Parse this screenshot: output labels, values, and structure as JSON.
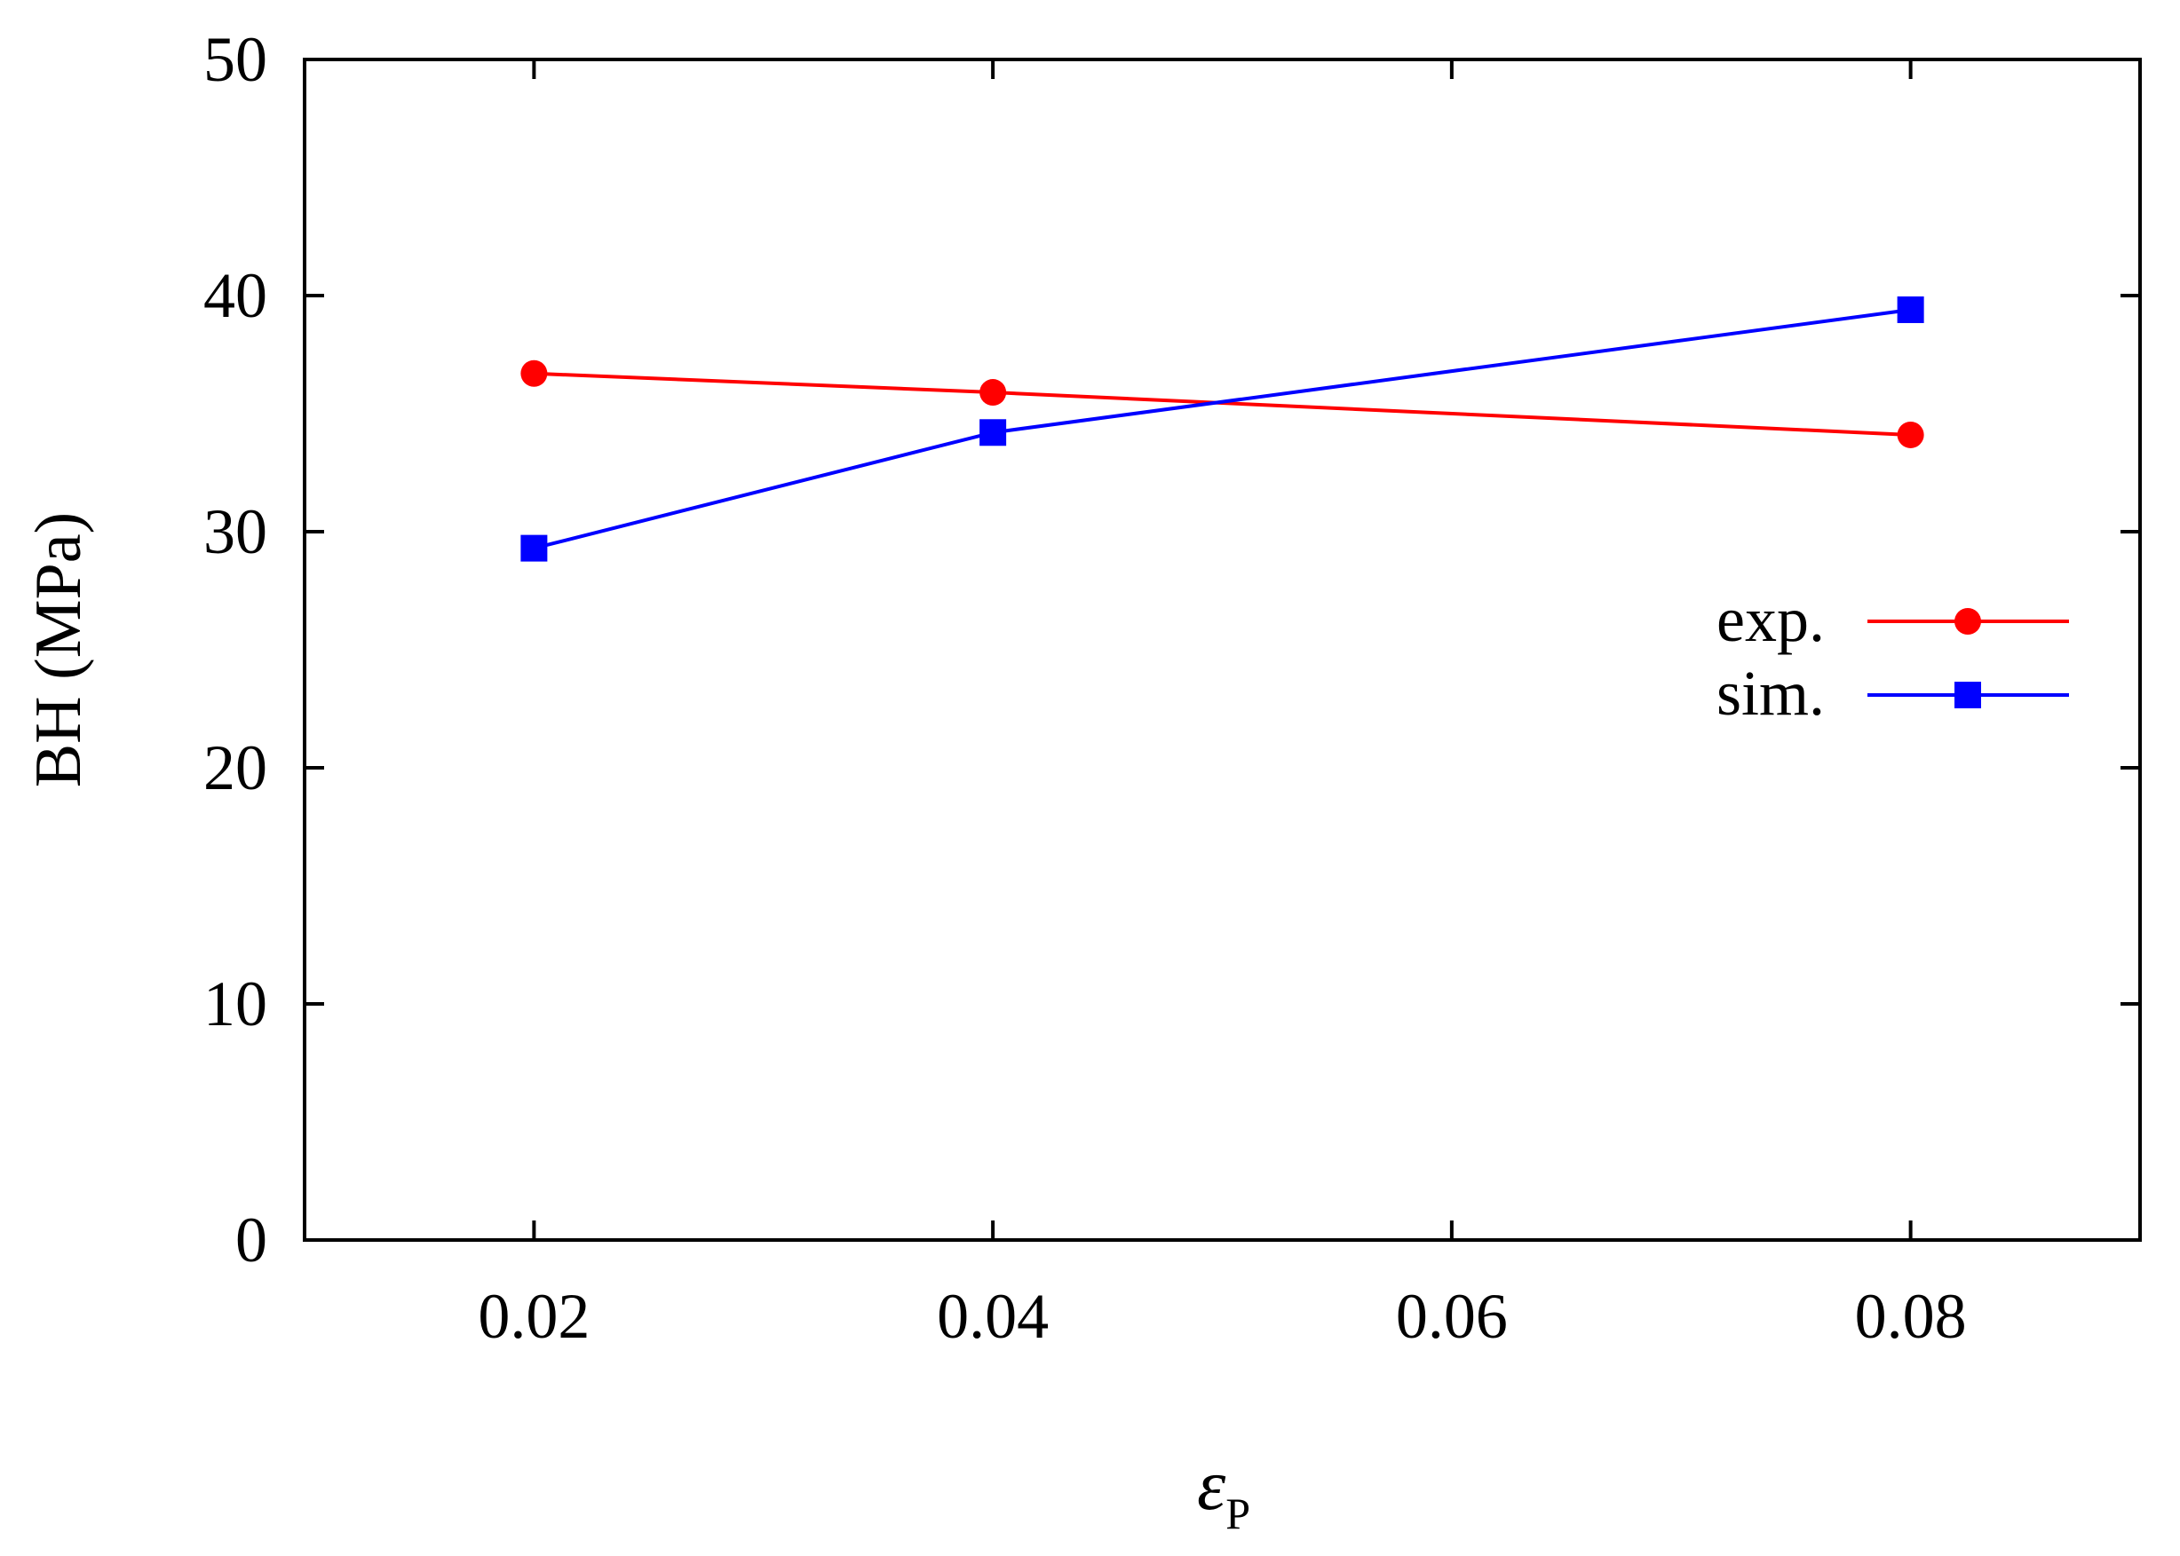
{
  "chart_data": {
    "type": "line",
    "title": "",
    "xlabel": "ε",
    "xlabel_subscript": "P",
    "ylabel": "BH (MPa)",
    "xlim": [
      0.01,
      0.09
    ],
    "ylim": [
      0,
      50
    ],
    "xticks": [
      0.02,
      0.04,
      0.06,
      0.08
    ],
    "xtick_labels": [
      "0.02",
      "0.04",
      "0.06",
      "0.08"
    ],
    "yticks": [
      0,
      10,
      20,
      30,
      40,
      50
    ],
    "ytick_labels": [
      "0",
      "10",
      "20",
      "30",
      "40",
      "50"
    ],
    "grid": false,
    "legend_position": "right",
    "series": [
      {
        "name": "exp.",
        "color": "#ff0000",
        "marker": "circle",
        "x": [
          0.02,
          0.04,
          0.08
        ],
        "y": [
          36.7,
          35.9,
          34.1
        ]
      },
      {
        "name": "sim.",
        "color": "#0000ff",
        "marker": "square",
        "x": [
          0.02,
          0.04,
          0.08
        ],
        "y": [
          29.3,
          34.2,
          39.4
        ]
      }
    ]
  }
}
